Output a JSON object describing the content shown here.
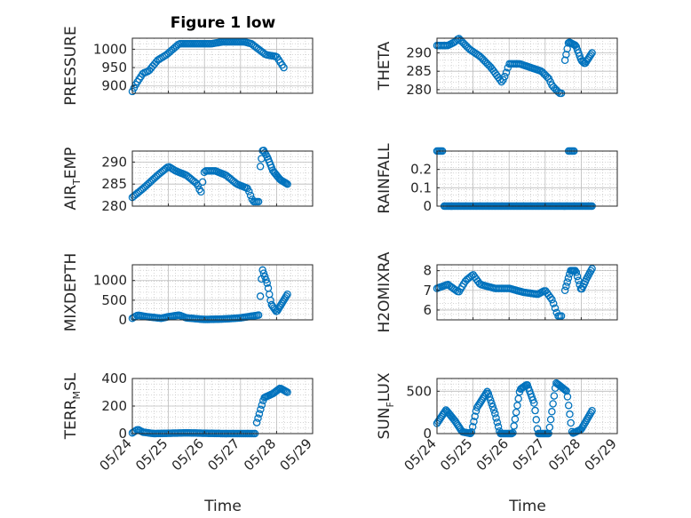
{
  "figure": {
    "title": "Figure 1 low"
  },
  "colors": {
    "marker": "#0072BD",
    "axes": "#262626",
    "grid": "#bcbcbc"
  },
  "chart_data": [
    {
      "type": "scatter",
      "ylabel": "PRESSURE",
      "ylim": [
        880,
        1030
      ],
      "yticks": [
        900,
        950,
        1000
      ],
      "grid": true,
      "knots": [
        [
          0,
          885
        ],
        [
          0.1,
          905
        ],
        [
          0.3,
          935
        ],
        [
          0.45,
          940
        ],
        [
          0.7,
          970
        ],
        [
          0.95,
          985
        ],
        [
          1.3,
          1015
        ],
        [
          1.7,
          1015
        ],
        [
          2.2,
          1015
        ],
        [
          2.5,
          1020
        ],
        [
          3.1,
          1020
        ],
        [
          3.3,
          1015
        ],
        [
          3.7,
          985
        ],
        [
          4.0,
          980
        ],
        [
          4.2,
          950
        ]
      ],
      "x_range": [
        0,
        4.2
      ],
      "n": 90
    },
    {
      "type": "scatter",
      "ylabel": "THETA",
      "ylim": [
        279,
        294
      ],
      "yticks": [
        280,
        285,
        290
      ],
      "grid": true,
      "segments": [
        {
          "knots": [
            [
              0,
              292
            ],
            [
              0.3,
              292
            ],
            [
              0.5,
              293
            ],
            [
              0.6,
              294
            ],
            [
              0.9,
              291
            ],
            [
              1.2,
              289
            ],
            [
              1.5,
              286
            ],
            [
              1.8,
              282
            ],
            [
              1.9,
              284
            ],
            [
              2.0,
              287
            ],
            [
              2.3,
              287
            ],
            [
              2.6,
              286
            ],
            [
              2.9,
              285
            ],
            [
              3.1,
              283
            ],
            [
              3.2,
              281
            ],
            [
              3.4,
              279
            ]
          ],
          "x_range": [
            0,
            3.45
          ],
          "n": 80
        },
        {
          "knots": [
            [
              3.55,
              288
            ],
            [
              3.65,
              293
            ],
            [
              3.85,
              292
            ],
            [
              4.0,
              288
            ],
            [
              4.1,
              287
            ],
            [
              4.3,
              290
            ]
          ],
          "x_range": [
            3.55,
            4.3
          ],
          "n": 25
        }
      ]
    },
    {
      "type": "scatter",
      "ylabel": "AIR_TEMP",
      "ylabel_parts": [
        "AIR",
        "T",
        "EMP"
      ],
      "ylim": [
        280,
        292.5
      ],
      "yticks": [
        280,
        285,
        290
      ],
      "grid": true,
      "segments": [
        {
          "knots": [
            [
              0,
              282
            ],
            [
              0.3,
              284
            ],
            [
              0.7,
              287
            ],
            [
              1.0,
              289
            ],
            [
              1.2,
              288
            ],
            [
              1.5,
              287
            ],
            [
              1.8,
              285
            ],
            [
              1.9,
              283
            ],
            [
              2.0,
              288
            ],
            [
              2.3,
              288
            ],
            [
              2.6,
              287
            ],
            [
              2.9,
              285
            ],
            [
              3.2,
              284
            ],
            [
              3.35,
              281
            ],
            [
              3.5,
              281
            ]
          ],
          "x_range": [
            0,
            3.5
          ],
          "n": 80
        },
        {
          "knots": [
            [
              3.55,
              289
            ],
            [
              3.62,
              293
            ],
            [
              3.75,
              291
            ],
            [
              3.9,
              288
            ],
            [
              4.1,
              286
            ],
            [
              4.3,
              285
            ]
          ],
          "x_range": [
            3.55,
            4.3
          ],
          "n": 25
        }
      ]
    },
    {
      "type": "scatter",
      "ylabel": "RAINFALL",
      "ylim": [
        0,
        0.3
      ],
      "yticks": [
        0,
        0.1,
        0.2
      ],
      "grid": true,
      "segments": [
        {
          "knots": [
            [
              0,
              0.3
            ],
            [
              0.15,
              0.3
            ]
          ],
          "x_range": [
            0,
            0.15
          ],
          "n": 5
        },
        {
          "knots": [
            [
              0.2,
              0
            ],
            [
              4.3,
              0
            ]
          ],
          "x_range": [
            0.2,
            4.3
          ],
          "n": 120
        },
        {
          "knots": [
            [
              3.65,
              0.3
            ],
            [
              3.8,
              0.3
            ]
          ],
          "x_range": [
            3.65,
            3.8
          ],
          "n": 5
        }
      ]
    },
    {
      "type": "scatter",
      "ylabel": "MIXDEPTH",
      "ylim": [
        0,
        1400
      ],
      "yticks": [
        0,
        500,
        1000
      ],
      "grid": true,
      "segments": [
        {
          "knots": [
            [
              0,
              40
            ],
            [
              0.15,
              120
            ],
            [
              0.4,
              80
            ],
            [
              0.8,
              40
            ],
            [
              1.0,
              80
            ],
            [
              1.3,
              120
            ],
            [
              1.5,
              50
            ],
            [
              2.0,
              10
            ],
            [
              2.5,
              20
            ],
            [
              3.0,
              50
            ],
            [
              3.5,
              120
            ]
          ],
          "x_range": [
            0,
            3.5
          ],
          "n": 80
        },
        {
          "knots": [
            [
              3.55,
              600
            ],
            [
              3.6,
              1300
            ],
            [
              3.75,
              900
            ],
            [
              3.85,
              400
            ],
            [
              4.0,
              200
            ],
            [
              4.3,
              650
            ]
          ],
          "x_range": [
            3.55,
            4.3
          ],
          "n": 25
        }
      ]
    },
    {
      "type": "scatter",
      "ylabel": "H2OMIXRA",
      "ylim": [
        5.5,
        8.3
      ],
      "yticks": [
        6,
        7,
        8
      ],
      "grid": true,
      "segments": [
        {
          "knots": [
            [
              0,
              7.1
            ],
            [
              0.3,
              7.3
            ],
            [
              0.6,
              6.9
            ],
            [
              0.8,
              7.5
            ],
            [
              1.0,
              7.8
            ],
            [
              1.2,
              7.3
            ],
            [
              1.6,
              7.1
            ],
            [
              2.0,
              7.1
            ],
            [
              2.4,
              6.9
            ],
            [
              2.8,
              6.8
            ],
            [
              3.0,
              7.0
            ],
            [
              3.2,
              6.5
            ],
            [
              3.35,
              5.7
            ],
            [
              3.45,
              5.7
            ]
          ],
          "x_range": [
            0,
            3.45
          ],
          "n": 80
        },
        {
          "knots": [
            [
              3.55,
              7.0
            ],
            [
              3.7,
              8.0
            ],
            [
              3.85,
              8.0
            ],
            [
              4.0,
              7.0
            ],
            [
              4.15,
              7.6
            ],
            [
              4.3,
              8.1
            ]
          ],
          "x_range": [
            3.55,
            4.3
          ],
          "n": 25
        }
      ]
    },
    {
      "type": "scatter",
      "ylabel": "TERR_MSL",
      "ylabel_parts": [
        "TERR",
        "M",
        "SL"
      ],
      "ylim": [
        0,
        400
      ],
      "yticks": [
        0,
        200,
        400
      ],
      "grid": true,
      "segments": [
        {
          "knots": [
            [
              0,
              5
            ],
            [
              0.15,
              30
            ],
            [
              0.3,
              10
            ],
            [
              0.6,
              0
            ],
            [
              1.5,
              5
            ],
            [
              2.5,
              0
            ],
            [
              3.4,
              0
            ]
          ],
          "x_range": [
            0,
            3.4
          ],
          "n": 80
        },
        {
          "knots": [
            [
              3.45,
              80
            ],
            [
              3.65,
              260
            ],
            [
              3.9,
              290
            ],
            [
              4.1,
              330
            ],
            [
              4.3,
              300
            ]
          ],
          "x_range": [
            3.45,
            4.3
          ],
          "n": 25
        }
      ]
    },
    {
      "type": "scatter",
      "ylabel": "SUN_FLUX",
      "ylabel_parts": [
        "SUN",
        "F",
        "LUX"
      ],
      "ylim": [
        0,
        650
      ],
      "yticks": [
        0,
        500
      ],
      "grid": true,
      "segments": [
        {
          "knots": [
            [
              0,
              120
            ],
            [
              0.25,
              280
            ],
            [
              0.5,
              150
            ],
            [
              0.7,
              20
            ],
            [
              0.95,
              0
            ],
            [
              1.1,
              300
            ],
            [
              1.4,
              500
            ],
            [
              1.6,
              250
            ],
            [
              1.75,
              0
            ],
            [
              2.1,
              0
            ],
            [
              2.3,
              520
            ],
            [
              2.5,
              580
            ],
            [
              2.7,
              350
            ],
            [
              2.8,
              0
            ],
            [
              3.1,
              0
            ],
            [
              3.3,
              600
            ],
            [
              3.6,
              500
            ],
            [
              3.75,
              0
            ],
            [
              4.0,
              50
            ],
            [
              4.3,
              270
            ]
          ],
          "x_range": [
            0,
            4.3
          ],
          "n": 140
        }
      ]
    }
  ],
  "x_axis": {
    "label": "Time",
    "ticks": [
      "05/24",
      "05/25",
      "05/26",
      "05/27",
      "05/28",
      "05/29"
    ]
  }
}
